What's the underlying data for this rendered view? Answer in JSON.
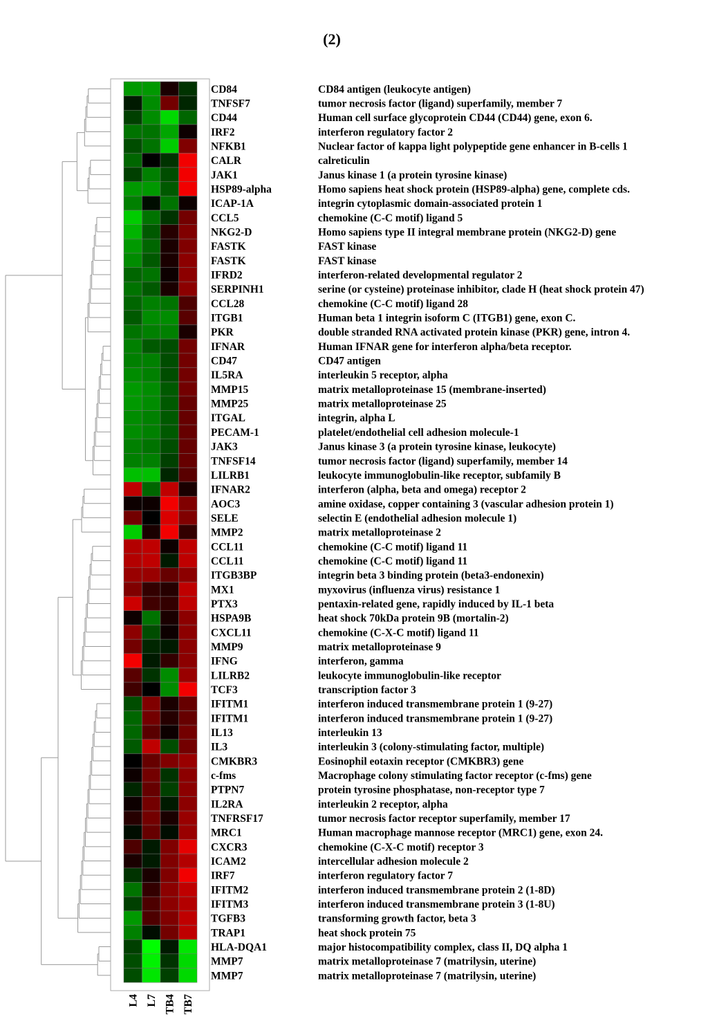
{
  "panel_label": "(2)",
  "chart_data": {
    "type": "heatmap",
    "title": "",
    "color_scale": {
      "low": "#00ff00",
      "mid": "#000000",
      "high": "#ff0000",
      "range": [
        -1,
        1
      ]
    },
    "columns": [
      "L4",
      "L7",
      "TB4",
      "TB7"
    ],
    "rows": [
      {
        "gene": "CD84",
        "description": "CD84 antigen (leukocyte antigen)",
        "values": [
          -0.6,
          -0.6,
          0.1,
          -0.2
        ]
      },
      {
        "gene": "TNFSF7",
        "description": "tumor necrosis factor (ligand) superfamily, member 7",
        "values": [
          -0.1,
          -0.55,
          0.45,
          -0.15
        ]
      },
      {
        "gene": "CD44",
        "description": "Human cell surface glycoprotein CD44 (CD44) gene, exon 6.",
        "values": [
          -0.25,
          -0.55,
          -0.85,
          -0.4
        ]
      },
      {
        "gene": "IRF2",
        "description": "interferon regulatory factor 2",
        "values": [
          -0.45,
          -0.45,
          -0.65,
          0.05
        ]
      },
      {
        "gene": "NFKB1",
        "description": "Nuclear factor of kappa light polypeptide gene enhancer in B-cells 1",
        "values": [
          -0.3,
          -0.45,
          -0.8,
          0.5
        ]
      },
      {
        "gene": "CALR",
        "description": "calreticulin",
        "values": [
          -0.4,
          0.0,
          -0.2,
          0.95
        ]
      },
      {
        "gene": "JAK1",
        "description": "Janus kinase 1 (a protein tyrosine kinase)",
        "values": [
          -0.25,
          -0.5,
          -0.3,
          0.95
        ]
      },
      {
        "gene": "HSP89-alpha",
        "description": "Homo sapiens heat shock protein (HSP89-alpha) gene, complete cds.",
        "values": [
          -0.6,
          -0.6,
          -0.35,
          0.95
        ]
      },
      {
        "gene": "ICAP-1A",
        "description": "integrin cytoplasmic domain-associated protein 1",
        "values": [
          -0.5,
          -0.05,
          -0.45,
          0.05
        ]
      },
      {
        "gene": "CCL5",
        "description": "chemokine (C-C motif) ligand 5",
        "values": [
          -0.8,
          -0.45,
          -0.2,
          0.45
        ]
      },
      {
        "gene": "NKG2-D",
        "description": "Homo sapiens type II integral membrane protein (NKG2-D) gene",
        "values": [
          -0.7,
          -0.35,
          0.15,
          0.5
        ]
      },
      {
        "gene": "FASTK",
        "description": "FAST kinase",
        "values": [
          -0.6,
          -0.4,
          0.1,
          0.5
        ]
      },
      {
        "gene": "FASTK",
        "description": "FAST kinase",
        "values": [
          -0.55,
          -0.35,
          0.1,
          0.55
        ]
      },
      {
        "gene": "IFRD2",
        "description": "interferon-related developmental regulator 2",
        "values": [
          -0.4,
          -0.45,
          0.05,
          0.55
        ]
      },
      {
        "gene": "SERPINH1",
        "description": "serine (or cysteine) proteinase inhibitor, clade H (heat shock protein 47)",
        "values": [
          -0.45,
          -0.35,
          0.1,
          0.55
        ]
      },
      {
        "gene": "CCL28",
        "description": "chemokine (C-C motif) ligand 28",
        "values": [
          -0.4,
          -0.5,
          -0.45,
          0.3
        ]
      },
      {
        "gene": "ITGB1",
        "description": "Human beta 1 integrin isoform C (ITGB1) gene, exon C.",
        "values": [
          -0.35,
          -0.55,
          -0.55,
          0.35
        ]
      },
      {
        "gene": "PKR",
        "description": "double stranded RNA activated protein kinase (PKR) gene, intron 4.",
        "values": [
          -0.45,
          -0.5,
          -0.5,
          0.1
        ]
      },
      {
        "gene": "IFNAR",
        "description": "Human IFNAR gene for interferon alpha/beta receptor.",
        "values": [
          -0.5,
          -0.35,
          -0.3,
          0.45
        ]
      },
      {
        "gene": "CD47",
        "description": "CD47 antigen",
        "values": [
          -0.5,
          -0.5,
          -0.3,
          0.45
        ]
      },
      {
        "gene": "IL5RA",
        "description": "interleukin 5 receptor, alpha",
        "values": [
          -0.55,
          -0.5,
          -0.3,
          0.45
        ]
      },
      {
        "gene": "MMP15",
        "description": "matrix metalloproteinase 15 (membrane-inserted)",
        "values": [
          -0.6,
          -0.55,
          -0.35,
          0.45
        ]
      },
      {
        "gene": "MMP25",
        "description": "matrix metalloproteinase 25",
        "values": [
          -0.6,
          -0.55,
          -0.35,
          0.4
        ]
      },
      {
        "gene": "ITGAL",
        "description": "integrin, alpha L",
        "values": [
          -0.55,
          -0.5,
          -0.35,
          0.4
        ]
      },
      {
        "gene": "PECAM-1",
        "description": "platelet/endothelial cell adhesion molecule-1",
        "values": [
          -0.55,
          -0.5,
          -0.35,
          0.4
        ]
      },
      {
        "gene": "JAK3",
        "description": "Janus kinase 3 (a protein tyrosine kinase, leukocyte)",
        "values": [
          -0.5,
          -0.45,
          -0.3,
          0.4
        ]
      },
      {
        "gene": "TNFSF14",
        "description": "tumor necrosis factor (ligand) superfamily, member 14",
        "values": [
          -0.5,
          -0.5,
          -0.25,
          0.4
        ]
      },
      {
        "gene": "LILRB1",
        "description": "leukocyte immunoglobulin-like receptor, subfamily B",
        "values": [
          -0.75,
          -0.75,
          -0.15,
          0.35
        ]
      },
      {
        "gene": "IFNAR2",
        "description": "interferon (alpha, beta and omega) receptor 2",
        "values": [
          0.75,
          -0.4,
          0.75,
          0.1
        ]
      },
      {
        "gene": "AOC3",
        "description": "amine oxidase, copper containing 3 (vascular adhesion protein 1)",
        "values": [
          0.05,
          0.05,
          0.95,
          0.5
        ]
      },
      {
        "gene": "SELE",
        "description": "selectin E (endothelial adhesion molecule 1)",
        "values": [
          0.45,
          0.0,
          0.85,
          0.5
        ]
      },
      {
        "gene": "MMP2",
        "description": "matrix metalloproteinase 2",
        "values": [
          -0.8,
          0.1,
          0.95,
          0.2
        ]
      },
      {
        "gene": "CCL11",
        "description": "chemokine (C-C motif) ligand 11",
        "values": [
          0.7,
          0.75,
          0.05,
          0.75
        ]
      },
      {
        "gene": "CCL11",
        "description": "chemokine (C-C motif) ligand 11",
        "values": [
          0.7,
          0.75,
          -0.1,
          0.75
        ]
      },
      {
        "gene": "ITGB3BP",
        "description": "integrin beta 3 binding protein (beta3-endonexin)",
        "values": [
          0.6,
          0.6,
          0.4,
          0.55
        ]
      },
      {
        "gene": "MX1",
        "description": "myxovirus (influenza virus) resistance 1",
        "values": [
          0.5,
          0.2,
          0.15,
          0.75
        ]
      },
      {
        "gene": "PTX3",
        "description": "pentaxin-related gene, rapidly induced by IL-1 beta",
        "values": [
          0.8,
          0.25,
          0.2,
          0.75
        ]
      },
      {
        "gene": "HSPA9B",
        "description": "heat shock 70kDa protein 9B (mortalin-2)",
        "values": [
          0.05,
          -0.45,
          0.1,
          0.55
        ]
      },
      {
        "gene": "CXCL11",
        "description": "chemokine (C-X-C motif) ligand 11",
        "values": [
          0.55,
          -0.3,
          0.05,
          0.55
        ]
      },
      {
        "gene": "MMP9",
        "description": "matrix metalloproteinase 9",
        "values": [
          0.45,
          -0.15,
          -0.1,
          0.55
        ]
      },
      {
        "gene": "IFNG",
        "description": "interferon, gamma",
        "values": [
          0.95,
          -0.1,
          0.2,
          0.55
        ]
      },
      {
        "gene": "LILRB2",
        "description": "leukocyte immunoglobulin-like receptor",
        "values": [
          0.35,
          -0.2,
          -0.55,
          0.6
        ]
      },
      {
        "gene": "TCF3",
        "description": "transcription factor 3",
        "values": [
          0.25,
          0.0,
          -0.55,
          0.95
        ]
      },
      {
        "gene": "IFITM1",
        "description": "interferon induced transmembrane protein 1 (9-27)",
        "values": [
          -0.3,
          0.5,
          0.1,
          0.4
        ]
      },
      {
        "gene": "IFITM1",
        "description": "interferon induced transmembrane protein 1 (9-27)",
        "values": [
          -0.4,
          0.45,
          0.15,
          0.4
        ]
      },
      {
        "gene": "IL13",
        "description": "interleukin 13",
        "values": [
          -0.4,
          0.35,
          0.05,
          0.45
        ]
      },
      {
        "gene": "IL3",
        "description": "interleukin 3 (colony-stimulating factor, multiple)",
        "values": [
          -0.35,
          0.75,
          -0.3,
          0.45
        ]
      },
      {
        "gene": "CMKBR3",
        "description": "Eosinophil eotaxin receptor (CMKBR3) gene",
        "values": [
          0.0,
          0.4,
          0.5,
          0.6
        ]
      },
      {
        "gene": "c-fms",
        "description": "Macrophage colony stimulating factor receptor (c-fms) gene",
        "values": [
          0.05,
          0.45,
          -0.2,
          0.55
        ]
      },
      {
        "gene": "PTPN7",
        "description": "protein tyrosine phosphatase, non-receptor type 7",
        "values": [
          -0.15,
          0.4,
          -0.25,
          0.55
        ]
      },
      {
        "gene": "IL2RA",
        "description": "interleukin 2 receptor, alpha",
        "values": [
          0.05,
          0.45,
          -0.1,
          0.55
        ]
      },
      {
        "gene": "TNFRSF17",
        "description": "tumor necrosis factor receptor superfamily, member 17",
        "values": [
          0.15,
          0.45,
          0.1,
          0.6
        ]
      },
      {
        "gene": "MRC1",
        "description": "Human macrophage mannose receptor (MRC1) gene, exon 24.",
        "values": [
          -0.05,
          0.4,
          -0.05,
          0.6
        ]
      },
      {
        "gene": "CXCR3",
        "description": "chemokine (C-X-C motif) receptor 3",
        "values": [
          0.3,
          -0.1,
          0.5,
          0.9
        ]
      },
      {
        "gene": "ICAM2",
        "description": "intercellular adhesion molecule 2",
        "values": [
          0.1,
          -0.1,
          0.5,
          0.7
        ]
      },
      {
        "gene": "IRF7",
        "description": "interferon regulatory factor 7",
        "values": [
          -0.2,
          0.1,
          0.5,
          0.95
        ]
      },
      {
        "gene": "IFITM2",
        "description": "interferon induced transmembrane protein 2 (1-8D)",
        "values": [
          -0.45,
          0.2,
          0.55,
          0.75
        ]
      },
      {
        "gene": "IFITM3",
        "description": "interferon induced transmembrane protein 3 (1-8U)",
        "values": [
          -0.25,
          0.3,
          0.55,
          0.7
        ]
      },
      {
        "gene": "TGFB3",
        "description": "transforming growth factor, beta 3",
        "values": [
          -0.6,
          0.3,
          0.5,
          0.75
        ]
      },
      {
        "gene": "TRAP1",
        "description": "heat shock protein 75",
        "values": [
          -0.5,
          -0.05,
          0.45,
          0.75
        ]
      },
      {
        "gene": "HLA-DQA1",
        "description": "major histocompatibility complex, class II, DQ alpha 1",
        "values": [
          -0.25,
          -1.0,
          -0.1,
          -0.9
        ]
      },
      {
        "gene": "MMP7",
        "description": "matrix metalloproteinase 7 (matrilysin, uterine)",
        "values": [
          -0.3,
          -0.95,
          -0.2,
          -0.85
        ]
      },
      {
        "gene": "MMP7",
        "description": "matrix metalloproteinase 7 (matrilysin, uterine)",
        "values": [
          -0.3,
          -0.9,
          -0.25,
          -0.85
        ]
      }
    ]
  }
}
